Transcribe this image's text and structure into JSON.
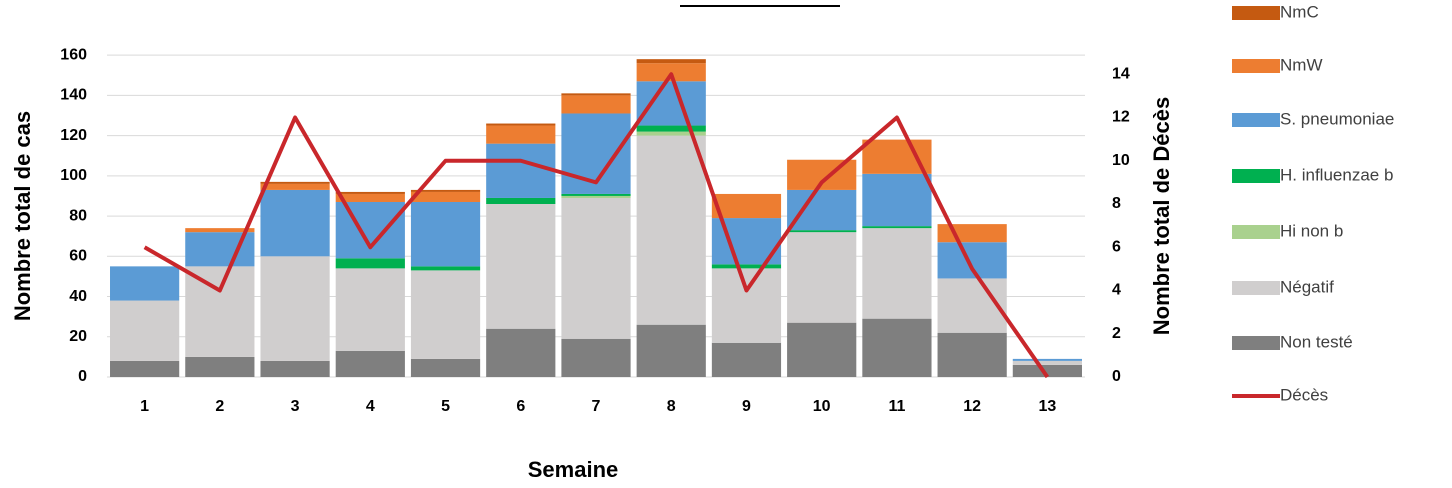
{
  "chart_data": {
    "type": "stacked_bar_line",
    "y_label": "Nombre total de cas",
    "y2_label": "Nombre total de Décès",
    "x_label": "Semaine",
    "categories": [
      "1",
      "2",
      "3",
      "4",
      "5",
      "6",
      "7",
      "8",
      "9",
      "10",
      "11",
      "12",
      "13"
    ],
    "series": [
      {
        "name": "Non testé",
        "color": "#7f7f7f",
        "values": [
          8,
          10,
          8,
          13,
          9,
          24,
          19,
          26,
          17,
          27,
          29,
          22,
          6
        ]
      },
      {
        "name": "Négatif",
        "color": "#d0cece",
        "values": [
          30,
          45,
          52,
          41,
          44,
          62,
          70,
          94,
          37,
          45,
          45,
          27,
          2
        ]
      },
      {
        "name": "Hi non b",
        "color": "#a9d18e",
        "values": [
          0,
          0,
          0,
          0,
          0,
          0,
          1,
          2,
          0,
          0,
          0,
          0,
          0
        ]
      },
      {
        "name": "H. influenzae b",
        "color": "#00b050",
        "values": [
          0,
          0,
          0,
          5,
          2,
          3,
          1,
          3,
          2,
          1,
          1,
          0,
          0
        ]
      },
      {
        "name": "S. pneumoniae",
        "color": "#5b9bd5",
        "values": [
          17,
          17,
          33,
          28,
          32,
          27,
          40,
          22,
          23,
          20,
          26,
          18,
          1
        ]
      },
      {
        "name": "NmW",
        "color": "#ed7d31",
        "values": [
          0,
          2,
          3,
          4,
          5,
          9,
          9,
          9,
          12,
          15,
          17,
          9,
          0
        ]
      },
      {
        "name": "NmC",
        "color": "#c55a11",
        "values": [
          0,
          0,
          1,
          1,
          1,
          1,
          1,
          2,
          0,
          0,
          0,
          0,
          0
        ]
      },
      {
        "name": "Décès",
        "color": "#c9272b",
        "axis": "y2",
        "values": [
          6,
          4,
          12,
          6,
          10,
          10,
          9,
          14,
          4,
          9,
          12,
          5,
          0
        ]
      }
    ],
    "ylim": [
      0,
      172
    ],
    "yticks": [
      0,
      20,
      40,
      60,
      80,
      100,
      120,
      140,
      160
    ],
    "y2lim": [
      0,
      16
    ],
    "y2ticks": [
      0,
      2,
      4,
      6,
      8,
      10,
      12,
      14
    ],
    "grid": true,
    "legend": "right"
  }
}
